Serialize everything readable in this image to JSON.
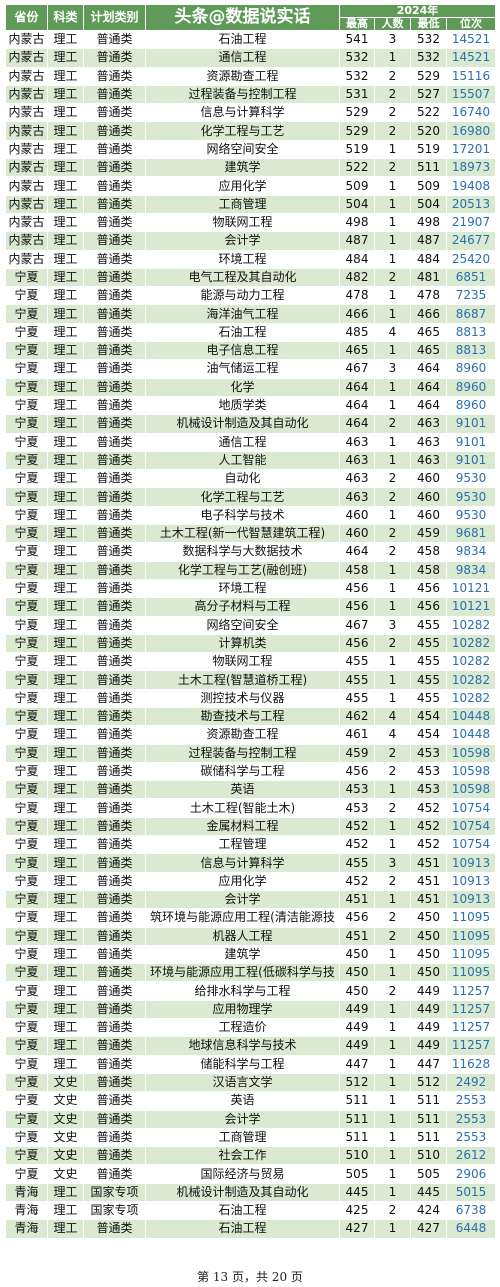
{
  "header": {
    "province": "省份",
    "subject": "科类",
    "plan_type": "计划类别",
    "title": "头条@数据说实话",
    "year": "2024年",
    "max": "最高",
    "count": "人数",
    "min": "最低",
    "rank": "位次"
  },
  "rows": [
    [
      "内蒙古",
      "理工",
      "普通类",
      "石油工程",
      "541",
      "3",
      "532",
      "14521"
    ],
    [
      "内蒙古",
      "理工",
      "普通类",
      "通信工程",
      "532",
      "1",
      "532",
      "14521"
    ],
    [
      "内蒙古",
      "理工",
      "普通类",
      "资源勘查工程",
      "532",
      "2",
      "529",
      "15116"
    ],
    [
      "内蒙古",
      "理工",
      "普通类",
      "过程装备与控制工程",
      "531",
      "2",
      "527",
      "15507"
    ],
    [
      "内蒙古",
      "理工",
      "普通类",
      "信息与计算科学",
      "529",
      "2",
      "522",
      "16740"
    ],
    [
      "内蒙古",
      "理工",
      "普通类",
      "化学工程与工艺",
      "529",
      "2",
      "520",
      "16980"
    ],
    [
      "内蒙古",
      "理工",
      "普通类",
      "网络空间安全",
      "519",
      "1",
      "519",
      "17201"
    ],
    [
      "内蒙古",
      "理工",
      "普通类",
      "建筑学",
      "522",
      "2",
      "511",
      "18973"
    ],
    [
      "内蒙古",
      "理工",
      "普通类",
      "应用化学",
      "509",
      "1",
      "509",
      "19408"
    ],
    [
      "内蒙古",
      "理工",
      "普通类",
      "工商管理",
      "504",
      "1",
      "504",
      "20513"
    ],
    [
      "内蒙古",
      "理工",
      "普通类",
      "物联网工程",
      "498",
      "1",
      "498",
      "21907"
    ],
    [
      "内蒙古",
      "理工",
      "普通类",
      "会计学",
      "487",
      "1",
      "487",
      "24677"
    ],
    [
      "内蒙古",
      "理工",
      "普通类",
      "环境工程",
      "484",
      "1",
      "484",
      "25420"
    ],
    [
      "宁夏",
      "理工",
      "普通类",
      "电气工程及其自动化",
      "482",
      "2",
      "481",
      "6851"
    ],
    [
      "宁夏",
      "理工",
      "普通类",
      "能源与动力工程",
      "478",
      "1",
      "478",
      "7235"
    ],
    [
      "宁夏",
      "理工",
      "普通类",
      "海洋油气工程",
      "466",
      "1",
      "466",
      "8687"
    ],
    [
      "宁夏",
      "理工",
      "普通类",
      "石油工程",
      "485",
      "4",
      "465",
      "8813"
    ],
    [
      "宁夏",
      "理工",
      "普通类",
      "电子信息工程",
      "465",
      "1",
      "465",
      "8813"
    ],
    [
      "宁夏",
      "理工",
      "普通类",
      "油气储运工程",
      "467",
      "3",
      "464",
      "8960"
    ],
    [
      "宁夏",
      "理工",
      "普通类",
      "化学",
      "464",
      "1",
      "464",
      "8960"
    ],
    [
      "宁夏",
      "理工",
      "普通类",
      "地质学类",
      "464",
      "1",
      "464",
      "8960"
    ],
    [
      "宁夏",
      "理工",
      "普通类",
      "机械设计制造及其自动化",
      "464",
      "2",
      "463",
      "9101"
    ],
    [
      "宁夏",
      "理工",
      "普通类",
      "通信工程",
      "463",
      "1",
      "463",
      "9101"
    ],
    [
      "宁夏",
      "理工",
      "普通类",
      "人工智能",
      "463",
      "1",
      "463",
      "9101"
    ],
    [
      "宁夏",
      "理工",
      "普通类",
      "自动化",
      "463",
      "2",
      "460",
      "9530"
    ],
    [
      "宁夏",
      "理工",
      "普通类",
      "化学工程与工艺",
      "463",
      "2",
      "460",
      "9530"
    ],
    [
      "宁夏",
      "理工",
      "普通类",
      "电子科学与技术",
      "460",
      "1",
      "460",
      "9530"
    ],
    [
      "宁夏",
      "理工",
      "普通类",
      "土木工程(新一代智慧建筑工程)",
      "460",
      "2",
      "459",
      "9681"
    ],
    [
      "宁夏",
      "理工",
      "普通类",
      "数据科学与大数据技术",
      "464",
      "2",
      "458",
      "9834"
    ],
    [
      "宁夏",
      "理工",
      "普通类",
      "化学工程与工艺(融创班)",
      "458",
      "1",
      "458",
      "9834"
    ],
    [
      "宁夏",
      "理工",
      "普通类",
      "环境工程",
      "456",
      "1",
      "456",
      "10121"
    ],
    [
      "宁夏",
      "理工",
      "普通类",
      "高分子材料与工程",
      "456",
      "1",
      "456",
      "10121"
    ],
    [
      "宁夏",
      "理工",
      "普通类",
      "网络空间安全",
      "467",
      "3",
      "455",
      "10282"
    ],
    [
      "宁夏",
      "理工",
      "普通类",
      "计算机类",
      "456",
      "2",
      "455",
      "10282"
    ],
    [
      "宁夏",
      "理工",
      "普通类",
      "物联网工程",
      "455",
      "1",
      "455",
      "10282"
    ],
    [
      "宁夏",
      "理工",
      "普通类",
      "土木工程(智慧道桥工程)",
      "455",
      "1",
      "455",
      "10282"
    ],
    [
      "宁夏",
      "理工",
      "普通类",
      "测控技术与仪器",
      "455",
      "1",
      "455",
      "10282"
    ],
    [
      "宁夏",
      "理工",
      "普通类",
      "勘查技术与工程",
      "462",
      "4",
      "454",
      "10448"
    ],
    [
      "宁夏",
      "理工",
      "普通类",
      "资源勘查工程",
      "461",
      "4",
      "454",
      "10448"
    ],
    [
      "宁夏",
      "理工",
      "普通类",
      "过程装备与控制工程",
      "459",
      "2",
      "453",
      "10598"
    ],
    [
      "宁夏",
      "理工",
      "普通类",
      "碳储科学与工程",
      "456",
      "2",
      "453",
      "10598"
    ],
    [
      "宁夏",
      "理工",
      "普通类",
      "英语",
      "453",
      "1",
      "453",
      "10598"
    ],
    [
      "宁夏",
      "理工",
      "普通类",
      "土木工程(智能土木)",
      "453",
      "2",
      "452",
      "10754"
    ],
    [
      "宁夏",
      "理工",
      "普通类",
      "金属材料工程",
      "452",
      "1",
      "452",
      "10754"
    ],
    [
      "宁夏",
      "理工",
      "普通类",
      "工程管理",
      "452",
      "1",
      "452",
      "10754"
    ],
    [
      "宁夏",
      "理工",
      "普通类",
      "信息与计算科学",
      "455",
      "3",
      "451",
      "10913"
    ],
    [
      "宁夏",
      "理工",
      "普通类",
      "应用化学",
      "452",
      "2",
      "451",
      "10913"
    ],
    [
      "宁夏",
      "理工",
      "普通类",
      "会计学",
      "451",
      "1",
      "451",
      "10913"
    ],
    [
      "宁夏",
      "理工",
      "普通类",
      "筑环境与能源应用工程(清洁能源技",
      "456",
      "2",
      "450",
      "11095"
    ],
    [
      "宁夏",
      "理工",
      "普通类",
      "机器人工程",
      "451",
      "2",
      "450",
      "11095"
    ],
    [
      "宁夏",
      "理工",
      "普通类",
      "建筑学",
      "450",
      "1",
      "450",
      "11095"
    ],
    [
      "宁夏",
      "理工",
      "普通类",
      "环境与能源应用工程(低碳科学与技",
      "450",
      "1",
      "450",
      "11095"
    ],
    [
      "宁夏",
      "理工",
      "普通类",
      "给排水科学与工程",
      "450",
      "2",
      "449",
      "11257"
    ],
    [
      "宁夏",
      "理工",
      "普通类",
      "应用物理学",
      "449",
      "1",
      "449",
      "11257"
    ],
    [
      "宁夏",
      "理工",
      "普通类",
      "工程造价",
      "449",
      "1",
      "449",
      "11257"
    ],
    [
      "宁夏",
      "理工",
      "普通类",
      "地球信息科学与技术",
      "449",
      "1",
      "449",
      "11257"
    ],
    [
      "宁夏",
      "理工",
      "普通类",
      "储能科学与工程",
      "447",
      "1",
      "447",
      "11628"
    ],
    [
      "宁夏",
      "文史",
      "普通类",
      "汉语言文学",
      "512",
      "1",
      "512",
      "2492"
    ],
    [
      "宁夏",
      "文史",
      "普通类",
      "英语",
      "511",
      "1",
      "511",
      "2553"
    ],
    [
      "宁夏",
      "文史",
      "普通类",
      "会计学",
      "511",
      "1",
      "511",
      "2553"
    ],
    [
      "宁夏",
      "文史",
      "普通类",
      "工商管理",
      "511",
      "1",
      "511",
      "2553"
    ],
    [
      "宁夏",
      "文史",
      "普通类",
      "社会工作",
      "510",
      "1",
      "510",
      "2612"
    ],
    [
      "宁夏",
      "文史",
      "普通类",
      "国际经济与贸易",
      "505",
      "1",
      "505",
      "2906"
    ],
    [
      "青海",
      "理工",
      "国家专项",
      "机械设计制造及其自动化",
      "445",
      "1",
      "445",
      "5015"
    ],
    [
      "青海",
      "理工",
      "国家专项",
      "石油工程",
      "425",
      "2",
      "424",
      "6738"
    ],
    [
      "青海",
      "理工",
      "普通类",
      "石油工程",
      "427",
      "1",
      "427",
      "6448"
    ]
  ],
  "footer": "第 13 页，共 20 页"
}
